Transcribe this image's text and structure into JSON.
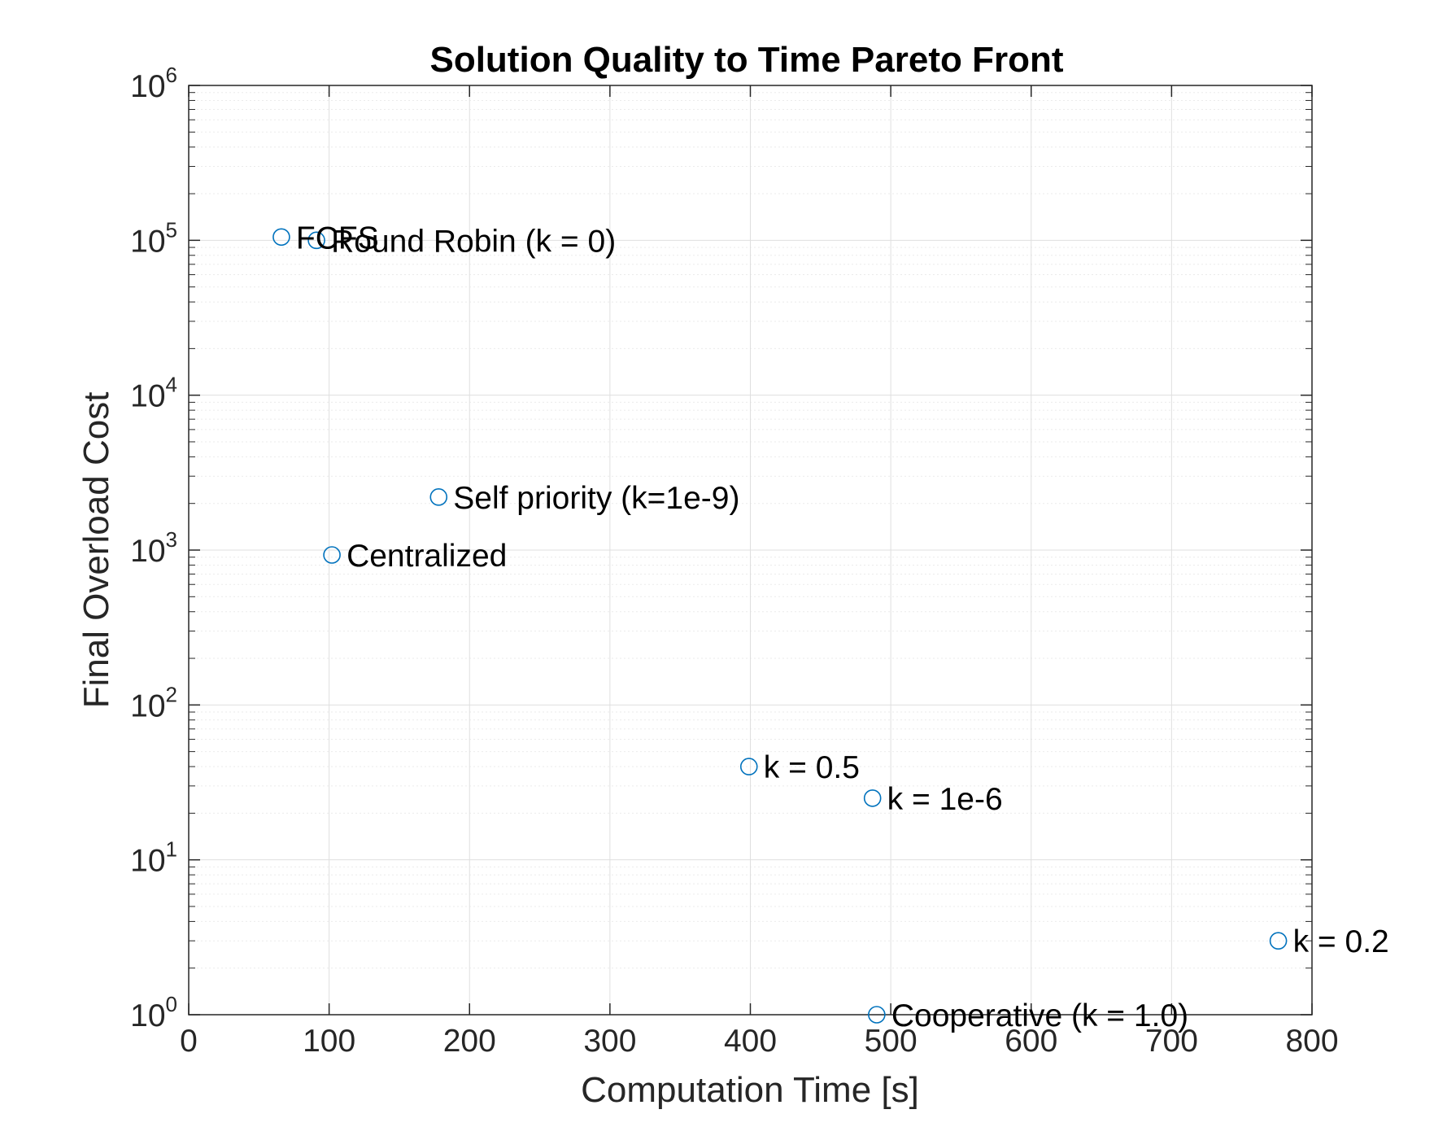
{
  "chart_data": {
    "type": "scatter",
    "title": "Solution Quality to Time Pareto Front",
    "xlabel": "Computation Time [s]",
    "ylabel": "Final Overload Cost",
    "xlim": [
      0,
      800
    ],
    "ylim": [
      1,
      1000000
    ],
    "yscale": "log",
    "grid": true,
    "minor_grid": true,
    "legend": "none",
    "marker": "circle-open",
    "x_ticks": [
      "0",
      "100",
      "200",
      "300",
      "400",
      "500",
      "600",
      "700",
      "800"
    ],
    "y_ticks": [
      {
        "base": "10",
        "exp": "0"
      },
      {
        "base": "10",
        "exp": "1"
      },
      {
        "base": "10",
        "exp": "2"
      },
      {
        "base": "10",
        "exp": "3"
      },
      {
        "base": "10",
        "exp": "4"
      },
      {
        "base": "10",
        "exp": "5"
      },
      {
        "base": "10",
        "exp": "6"
      }
    ],
    "points": [
      {
        "label": "FCFS",
        "x": 66,
        "y": 105000
      },
      {
        "label": "Round Robin (k = 0)",
        "x": 91,
        "y": 100000
      },
      {
        "label": "Self priority (k=1e-9)",
        "x": 178,
        "y": 2200
      },
      {
        "label": "Centralized",
        "x": 102,
        "y": 930
      },
      {
        "label": "k = 0.5",
        "x": 399,
        "y": 40
      },
      {
        "label": "k = 1e-6",
        "x": 487,
        "y": 25
      },
      {
        "label": "k = 0.2",
        "x": 776,
        "y": 3
      },
      {
        "label": "Cooperative (k = 1.0)",
        "x": 490,
        "y": 1
      }
    ]
  },
  "colors": {
    "marker": "#0072BD",
    "axis": "#262626",
    "grid_major": "#dfdfdf",
    "grid_minor": "#ebebeb"
  }
}
